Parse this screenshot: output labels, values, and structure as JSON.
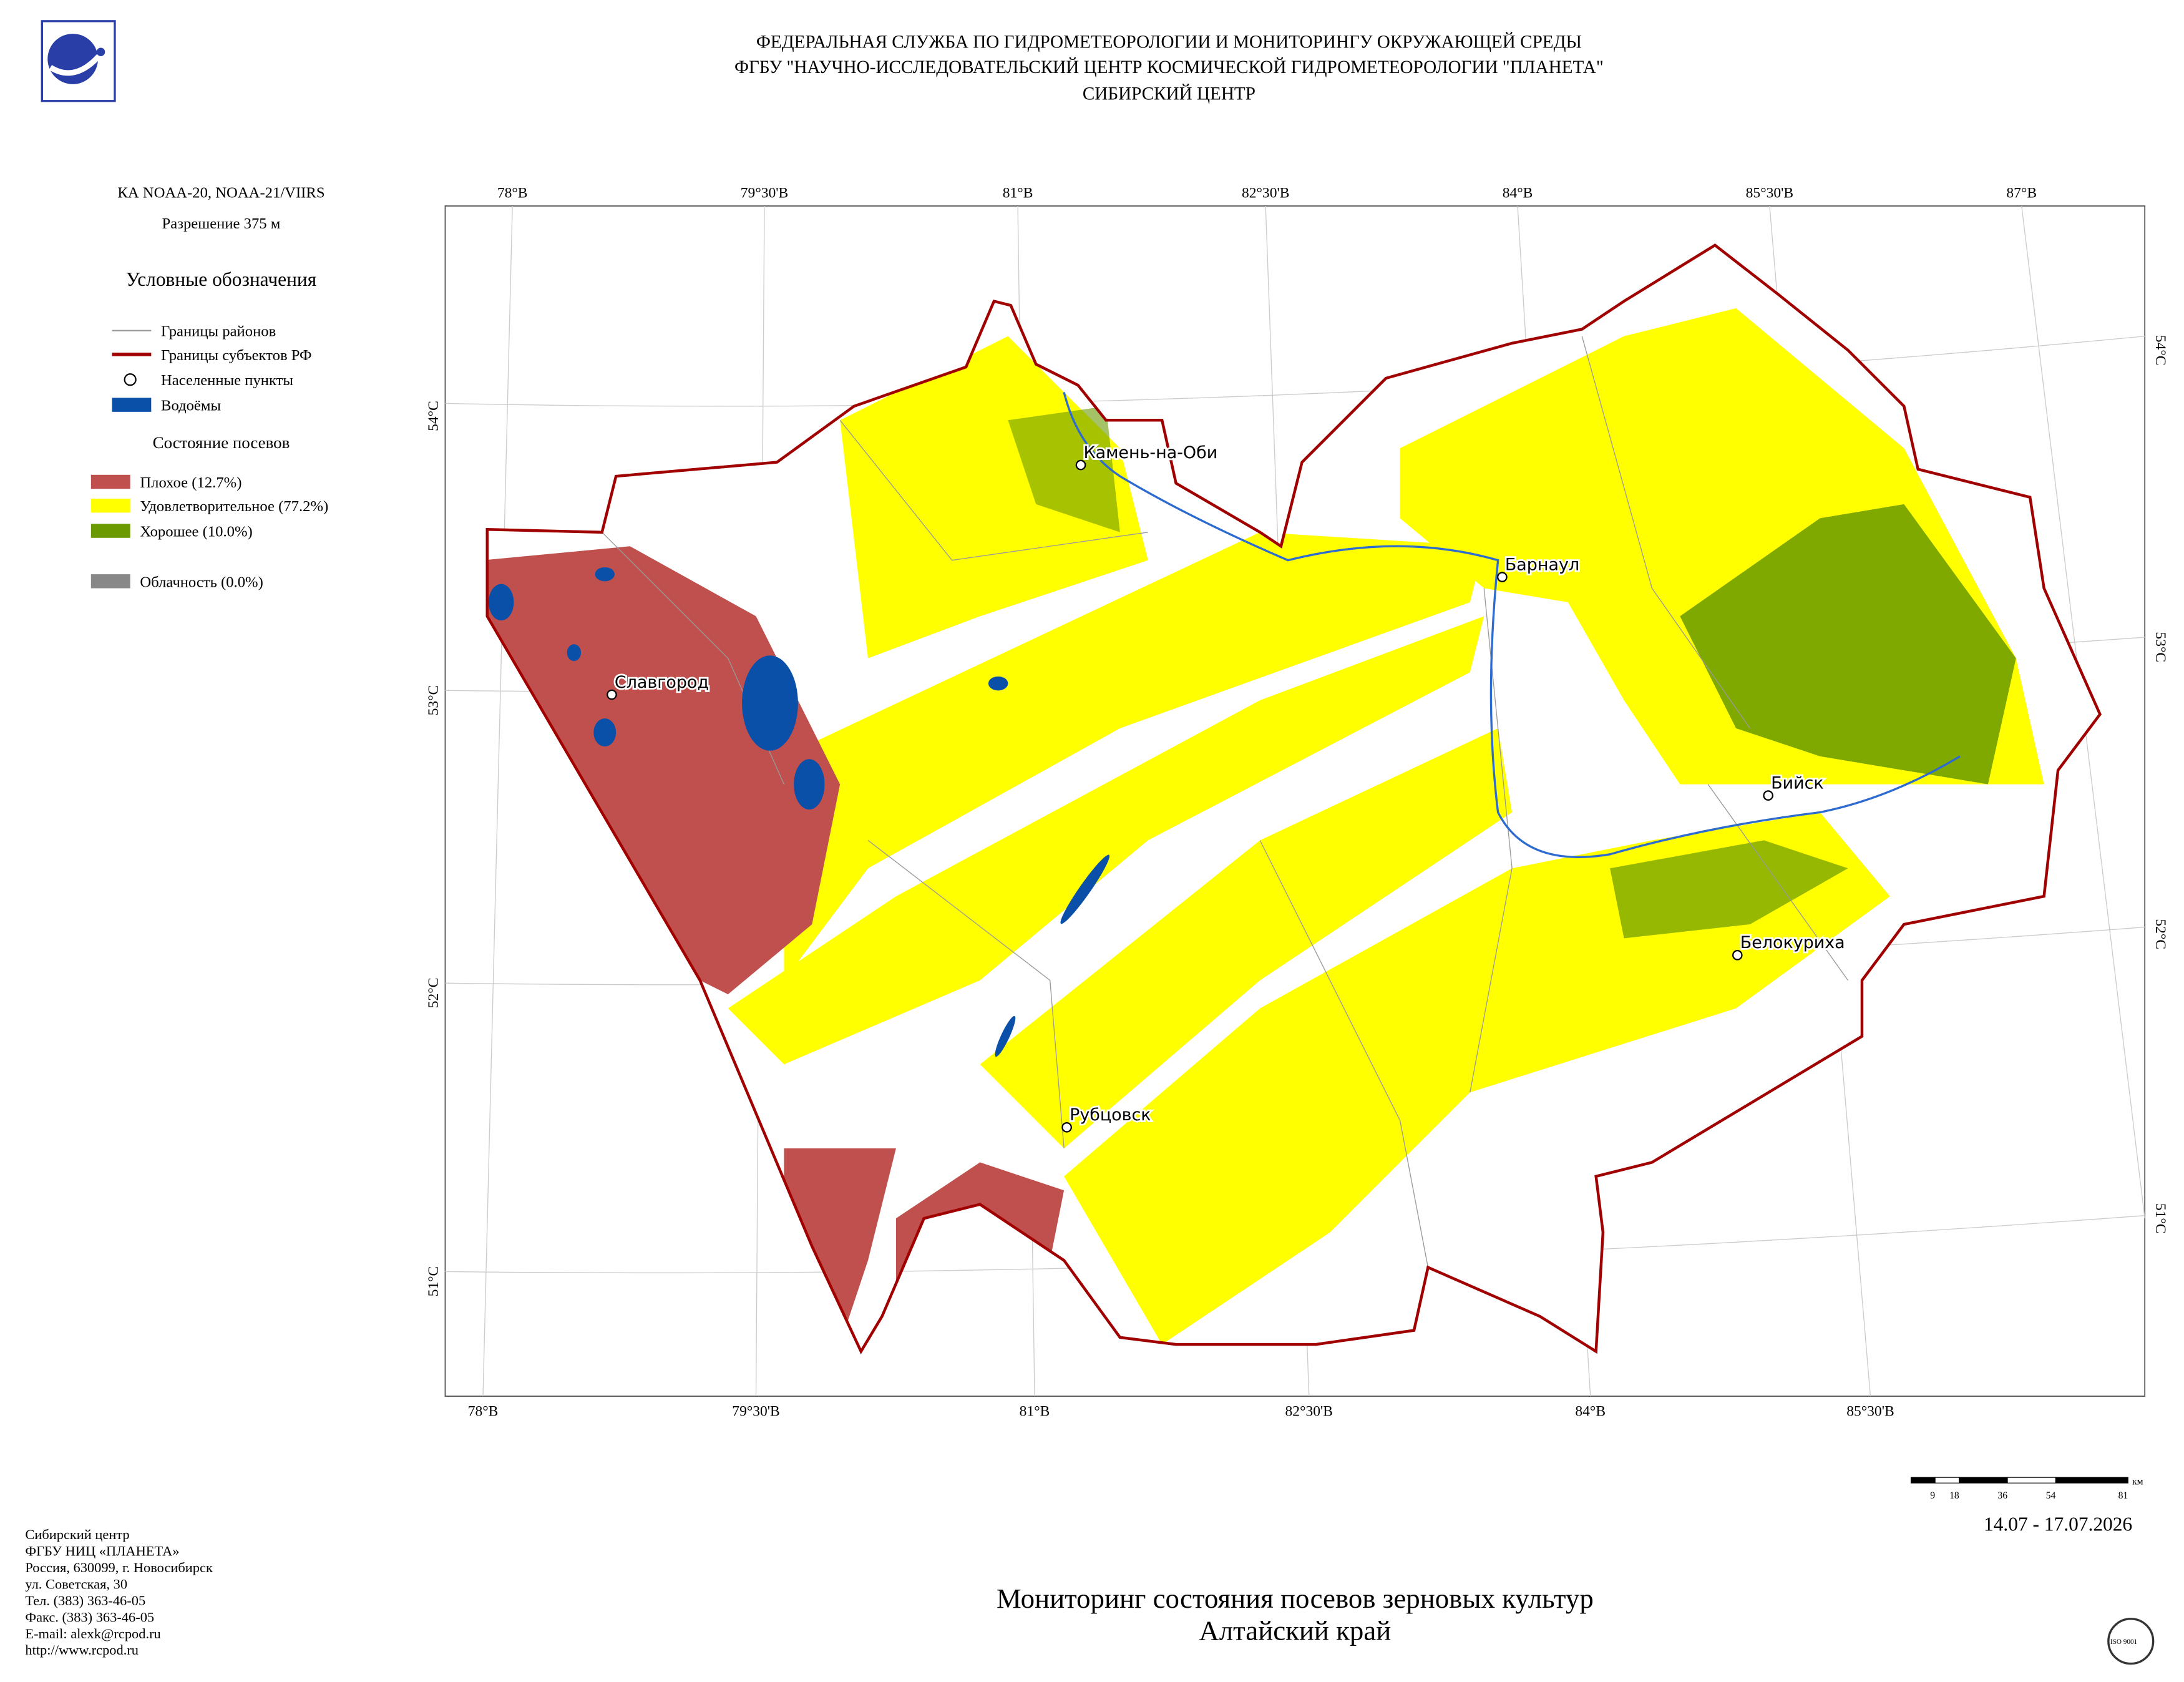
{
  "header": {
    "lines": [
      "ФЕДЕРАЛЬНАЯ СЛУЖБА ПО ГИДРОМЕТЕОРОЛОГИИ И МОНИТОРИНГУ ОКРУЖАЮЩЕЙ СРЕДЫ",
      "ФГБУ \"НАУЧНО-ИССЛЕДОВАТЕЛЬСКИЙ ЦЕНТР КОСМИЧЕСКОЙ ГИДРОМЕТЕОРОЛОГИИ \"ПЛАНЕТА\"",
      "СИБИРСКИЙ ЦЕНТР"
    ]
  },
  "left_panel": {
    "satellite": "КА NOAA-20, NOAA-21/VIIRS",
    "resolution": "Разрешение 375 м",
    "legend_title": "Условные обозначения",
    "legend_items": [
      "Границы районов",
      "Границы субъектов РФ",
      "Населенные пункты",
      "Водоёмы"
    ],
    "crop_title": "Состояние посевов",
    "crop_items": [
      "Плохое (12.7%)",
      "Удовлетворительное (77.2%)",
      "Хорошее (10.0%)"
    ],
    "cloud": "Облачность (0.0%)"
  },
  "map": {
    "top_lon_labels": [
      "78°В",
      "79°30'В",
      "81°В",
      "82°30'В",
      "84°В",
      "85°30'В",
      "87°В"
    ],
    "bottom_lon_labels": [
      "78°В",
      "79°30'В",
      "81°В",
      "82°30'В",
      "84°В",
      "85°30'В"
    ],
    "left_lat_labels": [
      "54°С",
      "53°С",
      "52°С",
      "51°С"
    ],
    "right_lat_labels": [
      "54°С",
      "53°С",
      "52°С",
      "51°С"
    ],
    "cities": [
      "Камень-на-Оби",
      "Барнаул",
      "Славгород",
      "Бийск",
      "Белокуриха",
      "Рубцовск"
    ]
  },
  "scale_bar": {
    "labels": [
      9,
      18,
      36,
      54,
      81
    ],
    "unit": "км"
  },
  "date": "14.07 - 17.07.2026",
  "title": [
    "Мониторинг состояния посевов зерновых культур",
    "Алтайский край"
  ],
  "contacts": [
    "Сибирский центр",
    "ФГБУ НИЦ «ПЛАНЕТА»",
    "Россия, 630099, г. Новосибирск",
    "ул. Советская, 30",
    "Тел. (383) 363-46-05",
    "Факс. (383) 363-46-05",
    "E-mail: alexk@rcpod.ru",
    "http://www.rcpod.ru"
  ]
}
